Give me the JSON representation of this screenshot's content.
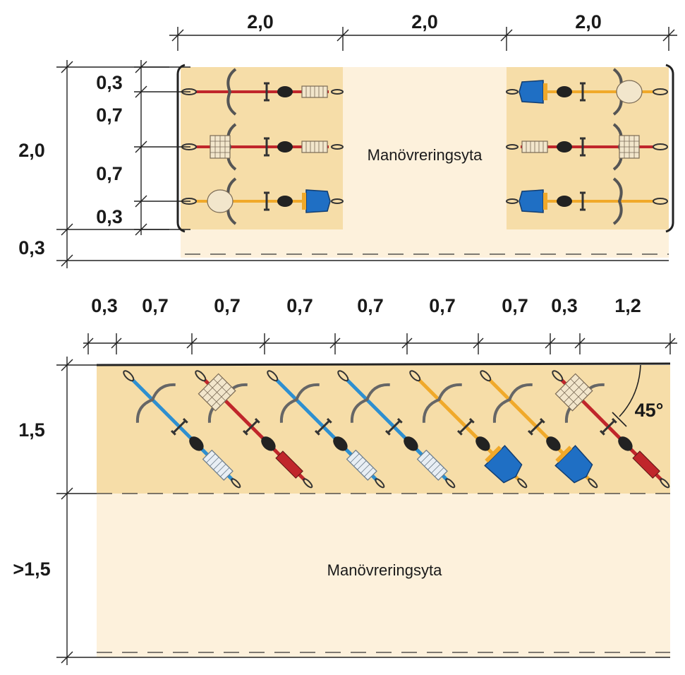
{
  "top": {
    "width_dims": [
      "2,0",
      "2,0",
      "2,0"
    ],
    "inner_depth_dims": [
      "0,3",
      "0,7",
      "0,7",
      "0,3"
    ],
    "outer_depth_dims": [
      "2,0",
      "0,3"
    ],
    "center_label": "Manövreringsyta",
    "bikes": [
      {
        "frame": "red",
        "row": 0,
        "side": "left",
        "accessory": "basket-rear"
      },
      {
        "frame": "red",
        "row": 1,
        "side": "left",
        "accessory": "basket-rear"
      },
      {
        "frame": "yellow",
        "row": 2,
        "side": "left",
        "accessory": "child-seat"
      },
      {
        "frame": "yellow",
        "row": 0,
        "side": "right",
        "accessory": "child-seat"
      },
      {
        "frame": "red",
        "row": 1,
        "side": "right",
        "accessory": "basket-rear"
      },
      {
        "frame": "yellow",
        "row": 2,
        "side": "right",
        "accessory": "child-seat"
      }
    ]
  },
  "bottom": {
    "width_dims": [
      "0,3",
      "0,7",
      "0,7",
      "0,7",
      "0,7",
      "0,7",
      "0,7",
      "0,3",
      "1,2"
    ],
    "depth_dims": [
      "1,5",
      ">1,5"
    ],
    "angle_label": "45°",
    "area_label": "Manövreringsyta",
    "bikes": [
      {
        "frame": "blue",
        "accessory": "basket-rear"
      },
      {
        "frame": "red",
        "accessory": "basket-front"
      },
      {
        "frame": "blue",
        "accessory": "basket-rear"
      },
      {
        "frame": "blue",
        "accessory": "basket-rear"
      },
      {
        "frame": "yellow",
        "accessory": "child-seat"
      },
      {
        "frame": "yellow",
        "accessory": "child-seat"
      },
      {
        "frame": "red",
        "accessory": "basket-front"
      }
    ]
  },
  "colors": {
    "parking_fill": "#f6dda8",
    "maneuver_fill": "#fdf1dc",
    "frame_red": "#c0262b",
    "frame_blue": "#2e8fd0",
    "frame_yellow": "#f0a92a",
    "seat_blue": "#1f6fc4"
  }
}
